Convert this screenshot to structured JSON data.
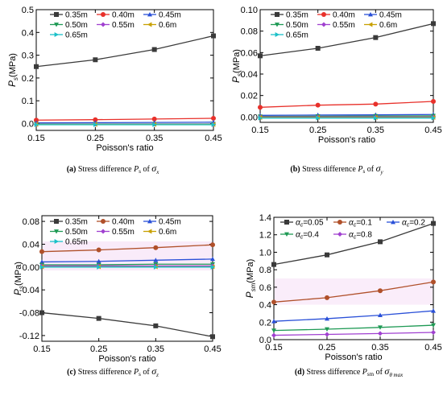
{
  "chart_data": [
    {
      "type": "line",
      "xlabel": "Poisson's ratio",
      "ylabel_main": "P",
      "ylabel_sub": "s",
      "ylabel_unit": "(MPa)",
      "x": [
        0.15,
        0.25,
        0.35,
        0.45
      ],
      "x_ticks": [
        "0.15",
        "0.25",
        "0.35",
        "0.45"
      ],
      "xlim": [
        0.15,
        0.45
      ],
      "ylim": [
        -0.03,
        0.5
      ],
      "y_ticks": [
        0.0,
        0.1,
        0.2,
        0.3,
        0.4,
        0.5
      ],
      "y_tick_labels": [
        "0.0",
        "0.1",
        "0.2",
        "0.3",
        "0.4",
        "0.5"
      ],
      "grid": false,
      "legend_position": "top",
      "legend_columns": 3,
      "caption": {
        "tag": "(a)",
        "text": "Stress difference",
        "sym": "P",
        "sub": "s",
        "of": "of",
        "sigma": "σ",
        "sigma_sub": "x"
      },
      "series": [
        {
          "name": "0.35m",
          "color": "#3a3a3a",
          "marker": "square",
          "values": [
            0.25,
            0.28,
            0.325,
            0.385
          ]
        },
        {
          "name": "0.40m",
          "color": "#e8302a",
          "marker": "circle",
          "values": [
            0.015,
            0.017,
            0.02,
            0.023
          ]
        },
        {
          "name": "0.45m",
          "color": "#2a50d8",
          "marker": "triangle-up",
          "values": [
            0.003,
            0.004,
            0.005,
            0.006
          ]
        },
        {
          "name": "0.50m",
          "color": "#1f9a55",
          "marker": "triangle-down",
          "values": [
            -0.002,
            -0.002,
            -0.002,
            -0.002
          ]
        },
        {
          "name": "0.55m",
          "color": "#a040d0",
          "marker": "diamond",
          "values": [
            -0.003,
            -0.003,
            -0.003,
            -0.003
          ]
        },
        {
          "name": "0.6m",
          "color": "#c8a000",
          "marker": "triangle-left",
          "values": [
            -0.004,
            -0.004,
            -0.004,
            -0.004
          ]
        },
        {
          "name": "0.65m",
          "color": "#1ac0c8",
          "marker": "triangle-right",
          "values": [
            -0.005,
            -0.005,
            -0.005,
            -0.005
          ]
        }
      ]
    },
    {
      "type": "line",
      "xlabel": "Poisson's ratio",
      "ylabel_main": "P",
      "ylabel_sub": "s",
      "ylabel_unit": "(MPa)",
      "x": [
        0.15,
        0.25,
        0.35,
        0.45
      ],
      "x_ticks": [
        "0.15",
        "0.25",
        "0.35",
        "0.45"
      ],
      "xlim": [
        0.15,
        0.45
      ],
      "ylim": [
        -0.005,
        0.1
      ],
      "y_ticks": [
        0.0,
        0.02,
        0.04,
        0.06,
        0.08,
        0.1
      ],
      "y_tick_labels": [
        "0.00",
        "0.02",
        "0.04",
        "0.06",
        "0.08",
        "0.10"
      ],
      "grid": false,
      "legend_position": "top",
      "legend_columns": 3,
      "caption": {
        "tag": "(b)",
        "text": "Stress difference",
        "sym": "P",
        "sub": "s",
        "of": "of",
        "sigma": "σ",
        "sigma_sub": "y"
      },
      "series": [
        {
          "name": "0.35m",
          "color": "#3a3a3a",
          "marker": "square",
          "values": [
            0.057,
            0.064,
            0.074,
            0.087
          ]
        },
        {
          "name": "0.40m",
          "color": "#e8302a",
          "marker": "circle",
          "values": [
            0.009,
            0.011,
            0.012,
            0.0145
          ]
        },
        {
          "name": "0.45m",
          "color": "#2a50d8",
          "marker": "triangle-up",
          "values": [
            0.0015,
            0.0018,
            0.002,
            0.0023
          ]
        },
        {
          "name": "0.50m",
          "color": "#1f9a55",
          "marker": "triangle-down",
          "values": [
            0.0005,
            0.0007,
            0.0009,
            0.0011
          ]
        },
        {
          "name": "0.55m",
          "color": "#a040d0",
          "marker": "diamond",
          "values": [
            0.0,
            0.0,
            0.0,
            0.0
          ]
        },
        {
          "name": "0.6m",
          "color": "#c8a000",
          "marker": "triangle-left",
          "values": [
            -0.0005,
            -0.0005,
            -0.0005,
            -0.0005
          ]
        },
        {
          "name": "0.65m",
          "color": "#1ac0c8",
          "marker": "triangle-right",
          "values": [
            -0.001,
            -0.001,
            -0.001,
            -0.001
          ]
        }
      ]
    },
    {
      "type": "line",
      "xlabel": "Poisson's ratio",
      "ylabel_main": "P",
      "ylabel_sub": "s",
      "ylabel_unit": "(MPa)",
      "x": [
        0.15,
        0.25,
        0.35,
        0.45
      ],
      "x_ticks": [
        "0.15",
        "0.25",
        "0.35",
        "0.45"
      ],
      "xlim": [
        0.15,
        0.45
      ],
      "ylim": [
        -0.13,
        0.09
      ],
      "y_ticks": [
        -0.12,
        -0.08,
        -0.04,
        0.0,
        0.04,
        0.08
      ],
      "y_tick_labels": [
        "-0.12",
        "-0.08",
        "-0.04",
        "0.00",
        "0.04",
        "0.08"
      ],
      "grid": false,
      "legend_position": "top",
      "legend_columns": 3,
      "caption": {
        "tag": "(c)",
        "text": "Stress difference",
        "sym": "P",
        "sub": "s",
        "of": "of",
        "sigma": "σ",
        "sigma_sub": "z"
      },
      "series": [
        {
          "name": "0.35m",
          "color": "#3a3a3a",
          "marker": "square",
          "values": [
            -0.08,
            -0.09,
            -0.103,
            -0.122
          ]
        },
        {
          "name": "0.40m",
          "color": "#b0502a",
          "marker": "circle",
          "values": [
            0.027,
            0.03,
            0.034,
            0.039
          ]
        },
        {
          "name": "0.45m",
          "color": "#2a50d8",
          "marker": "triangle-up",
          "values": [
            0.009,
            0.01,
            0.012,
            0.014
          ]
        },
        {
          "name": "0.50m",
          "color": "#1f9a55",
          "marker": "triangle-down",
          "values": [
            0.004,
            0.004,
            0.005,
            0.005
          ]
        },
        {
          "name": "0.55m",
          "color": "#a040d0",
          "marker": "diamond",
          "values": [
            0.002,
            0.002,
            0.002,
            0.002
          ]
        },
        {
          "name": "0.6m",
          "color": "#c8a000",
          "marker": "triangle-left",
          "values": [
            0.0005,
            0.0005,
            0.0005,
            0.0005
          ]
        },
        {
          "name": "0.65m",
          "color": "#1ac0c8",
          "marker": "triangle-right",
          "values": [
            0.0,
            0.0,
            0.0,
            0.0
          ]
        }
      ]
    },
    {
      "type": "line",
      "xlabel": "Poisson's ratio",
      "ylabel_main": "P",
      "ylabel_sub": "sm",
      "ylabel_unit": "(MPa)",
      "x": [
        0.15,
        0.25,
        0.35,
        0.45
      ],
      "x_ticks": [
        "0.15",
        "0.25",
        "0.35",
        "0.45"
      ],
      "xlim": [
        0.15,
        0.45
      ],
      "ylim": [
        0.0,
        1.4
      ],
      "y_ticks": [
        0.0,
        0.2,
        0.4,
        0.6,
        0.8,
        1.0,
        1.2,
        1.4
      ],
      "y_tick_labels": [
        "0.0",
        "0.2",
        "0.4",
        "0.6",
        "0.8",
        "1.0",
        "1.2",
        "1.4"
      ],
      "grid": false,
      "legend_position": "top",
      "legend_columns": 3,
      "caption": {
        "tag": "(d)",
        "text": "Stress difference",
        "sym": "P",
        "sub": "sm",
        "of": "of",
        "sigma": "σ",
        "sigma_sub": "θ max"
      },
      "series": [
        {
          "name": "α_c=0.05",
          "greek": "α",
          "sub": "c",
          "eq": "=0.05",
          "color": "#3a3a3a",
          "marker": "square",
          "values": [
            0.86,
            0.97,
            1.12,
            1.33
          ]
        },
        {
          "name": "α_c=0.1",
          "greek": "α",
          "sub": "c",
          "eq": "=0.1",
          "color": "#b0502a",
          "marker": "circle",
          "values": [
            0.43,
            0.48,
            0.56,
            0.66
          ]
        },
        {
          "name": "α_c=0.2",
          "greek": "α",
          "sub": "c",
          "eq": "=0.2",
          "color": "#2a50d8",
          "marker": "triangle-up",
          "values": [
            0.21,
            0.24,
            0.28,
            0.33
          ]
        },
        {
          "name": "α_c=0.4",
          "greek": "α",
          "sub": "c",
          "eq": "=0.4",
          "color": "#1f9a55",
          "marker": "triangle-down",
          "values": [
            0.105,
            0.12,
            0.14,
            0.165
          ]
        },
        {
          "name": "α_c=0.8",
          "greek": "α",
          "sub": "c",
          "eq": "=0.8",
          "color": "#a040d0",
          "marker": "diamond",
          "values": [
            0.05,
            0.06,
            0.07,
            0.083
          ]
        }
      ]
    }
  ]
}
